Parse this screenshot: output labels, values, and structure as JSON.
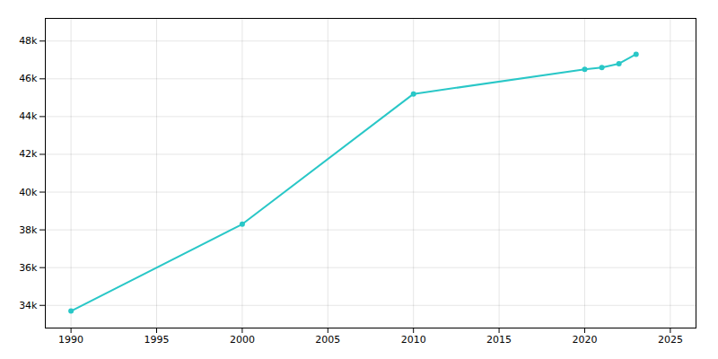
{
  "chart_data": {
    "type": "line",
    "x": [
      1990,
      2000,
      2010,
      2020,
      2021,
      2022,
      2023
    ],
    "values": [
      33700,
      38300,
      45200,
      46500,
      46600,
      46800,
      47300
    ],
    "color": "#29c7c7",
    "marker": "circle",
    "xlim": [
      1988.5,
      2026.5
    ],
    "ylim": [
      32800,
      49200
    ],
    "xticks": [
      1990,
      1995,
      2000,
      2005,
      2010,
      2015,
      2020,
      2025
    ],
    "yticks": [
      {
        "value": 34000,
        "label": "34k"
      },
      {
        "value": 36000,
        "label": "36k"
      },
      {
        "value": 38000,
        "label": "38k"
      },
      {
        "value": 40000,
        "label": "40k"
      },
      {
        "value": 42000,
        "label": "42k"
      },
      {
        "value": 44000,
        "label": "44k"
      },
      {
        "value": 46000,
        "label": "46k"
      },
      {
        "value": 48000,
        "label": "48k"
      }
    ],
    "grid": true
  }
}
